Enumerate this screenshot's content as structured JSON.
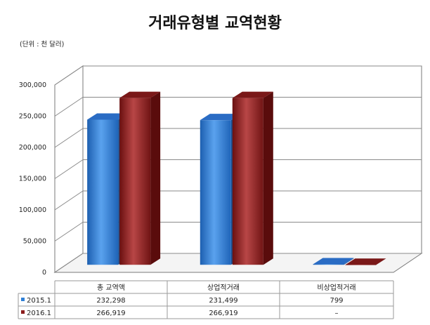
{
  "chart_data": {
    "type": "bar",
    "title": "거래유형별 교역현황",
    "unit_label": "(단위 : 천 달러)",
    "categories": [
      "총 교역액",
      "상업적거래",
      "비상업적거래"
    ],
    "ylim": [
      0,
      300000
    ],
    "yticks": [
      "0",
      "50,000",
      "100,000",
      "150,000",
      "200,000",
      "250,000",
      "300,000"
    ],
    "ytick_values": [
      0,
      50000,
      100000,
      150000,
      200000,
      250000,
      300000
    ],
    "grid": true,
    "series": [
      {
        "name": "2015.1",
        "values": [
          232298,
          231499,
          799
        ],
        "display": [
          "232,298",
          "231,499",
          "799"
        ],
        "color": "#2f7fd6"
      },
      {
        "name": "2016.1",
        "values": [
          266919,
          266919,
          0
        ],
        "display": [
          "266,919",
          "266,919",
          "–"
        ],
        "color": "#8c1c1c"
      }
    ],
    "legend": "table-below"
  }
}
